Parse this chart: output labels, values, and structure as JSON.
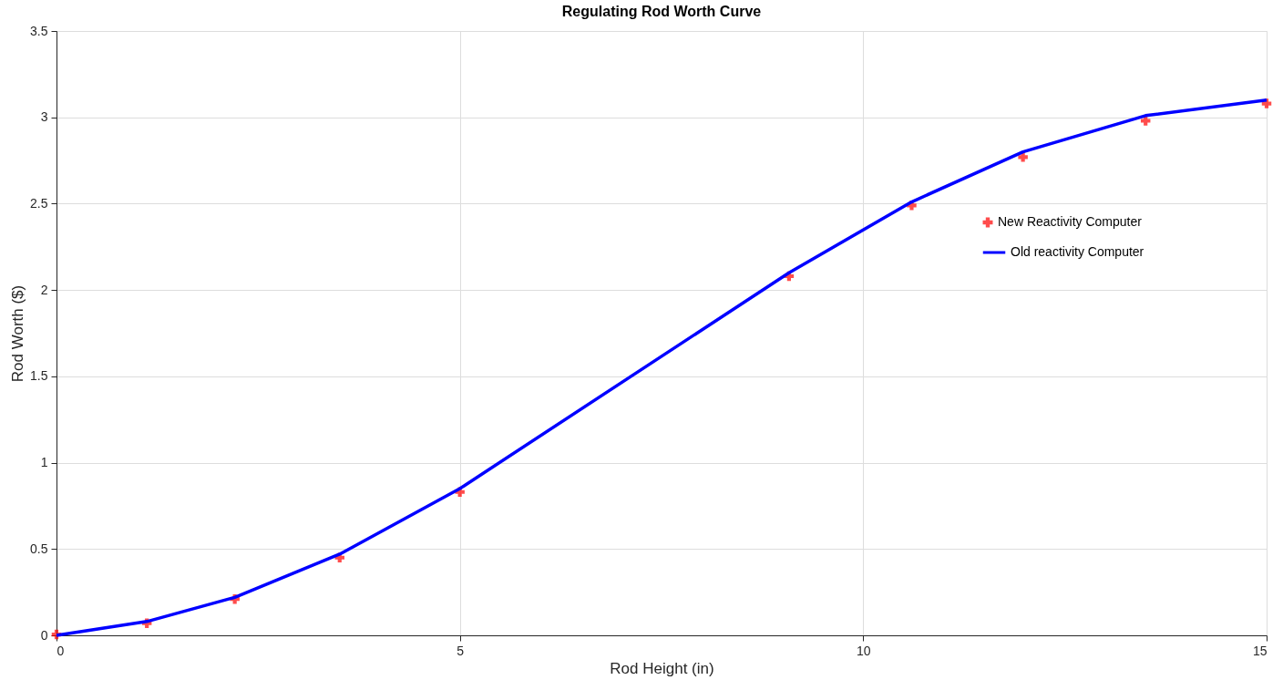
{
  "chart_data": {
    "type": "line",
    "title": "Regulating Rod Worth Curve",
    "xlabel": "Rod Height (in)",
    "ylabel": "Rod Worth ($)",
    "x": [
      0,
      1.12,
      2.21,
      3.51,
      5.0,
      9.08,
      10.6,
      11.98,
      13.5,
      15
    ],
    "series": [
      {
        "name": "New Reactivity Computer",
        "type": "scatter",
        "marker": "cross",
        "color": "#ff0000",
        "values": [
          0.005,
          0.07,
          0.21,
          0.45,
          0.83,
          2.08,
          2.49,
          2.77,
          2.98,
          3.08
        ]
      },
      {
        "name": "Old reactivity Computer",
        "marker": "none",
        "line_style": "solid",
        "color": "#0000ff",
        "values": [
          0,
          0.08,
          0.22,
          0.47,
          0.85,
          2.1,
          2.51,
          2.8,
          3.01,
          3.1
        ]
      }
    ],
    "xlim": [
      0,
      15
    ],
    "xticks": [
      0,
      5,
      10,
      15
    ],
    "ylim": [
      0,
      3.5
    ],
    "yticks": [
      0,
      0.5,
      1,
      1.5,
      2,
      2.5,
      3,
      3.5
    ],
    "grid": true,
    "legend": "top right"
  }
}
